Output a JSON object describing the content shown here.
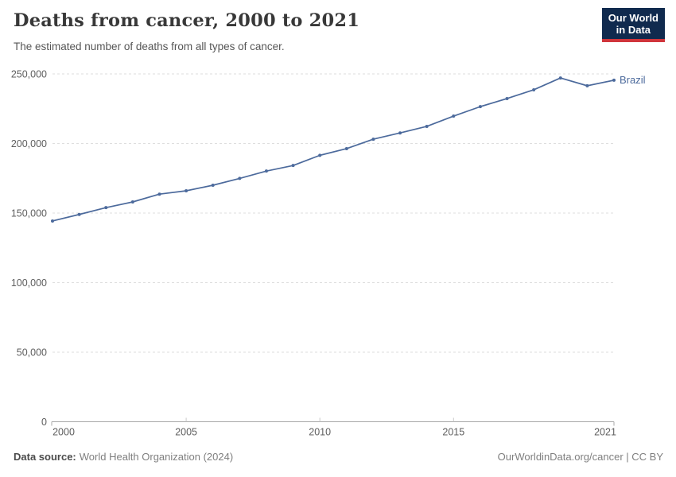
{
  "header": {
    "title": "Deaths from cancer, 2000 to 2021",
    "subtitle": "The estimated number of deaths from all types of cancer.",
    "logo_line1": "Our World",
    "logo_line2": "in Data"
  },
  "colors": {
    "accent": "#4C6A9C",
    "logo_bg": "#102A4E",
    "logo_red": "#D0353B",
    "grid": "#DEDEDE",
    "axis": "#A8A8A8",
    "tick_label": "#5E5E5E"
  },
  "chart_data": {
    "type": "line",
    "title": "Deaths from cancer, 2000 to 2021",
    "subtitle": "The estimated number of deaths from all types of cancer.",
    "xlabel": "",
    "ylabel": "",
    "grid": "horizontal-dashed",
    "legend_position": "end-of-line-label",
    "xlim": [
      2000,
      2021
    ],
    "ylim": [
      0,
      250000
    ],
    "x": [
      2000,
      2001,
      2002,
      2003,
      2004,
      2005,
      2006,
      2007,
      2008,
      2009,
      2010,
      2011,
      2012,
      2013,
      2014,
      2015,
      2016,
      2017,
      2018,
      2019,
      2020,
      2021
    ],
    "series": [
      {
        "name": "Brazil",
        "color": "#4C6A9C",
        "values": [
          144300,
          149000,
          153900,
          158000,
          163600,
          166000,
          170000,
          174900,
          180200,
          184200,
          191500,
          196300,
          203100,
          207600,
          212300,
          219700,
          226500,
          232300,
          238600,
          247100,
          241500,
          245500
        ]
      }
    ],
    "xticks": {
      "values": [
        2000,
        2005,
        2010,
        2015,
        2021
      ],
      "labels": [
        "2000",
        "2005",
        "2010",
        "2015",
        "2021"
      ]
    },
    "yticks": {
      "values": [
        0,
        50000,
        100000,
        150000,
        200000,
        250000
      ],
      "labels": [
        "0",
        "50,000",
        "100,000",
        "150,000",
        "200,000",
        "250,000"
      ]
    }
  },
  "footer": {
    "source_label": "Data source:",
    "source_value": "World Health Organization (2024)",
    "credit": "OurWorldinData.org/cancer | CC BY"
  }
}
